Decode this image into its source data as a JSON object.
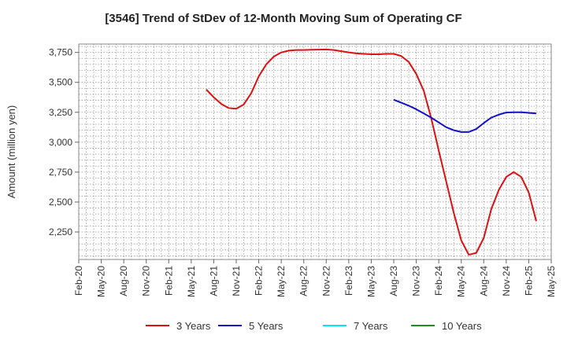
{
  "chart_data": {
    "type": "line",
    "title": "[3546]  Trend of StDev of 12-Month Moving Sum of Operating CF",
    "xlabel": "",
    "ylabel": "Amount (million yen)",
    "ylim": [
      2020,
      3820
    ],
    "yticks": [
      2250,
      2500,
      2750,
      3000,
      3250,
      3500,
      3750
    ],
    "ytick_labels": [
      "2,250",
      "2,500",
      "2,750",
      "3,000",
      "3,250",
      "3,500",
      "3,750"
    ],
    "x_categories": [
      "Feb-20",
      "May-20",
      "Aug-20",
      "Nov-20",
      "Feb-21",
      "May-21",
      "Aug-21",
      "Nov-21",
      "Feb-22",
      "May-22",
      "Aug-22",
      "Nov-22",
      "Feb-23",
      "May-23",
      "Aug-23",
      "Nov-23",
      "Feb-24",
      "May-24",
      "Aug-24",
      "Nov-24",
      "Feb-25",
      "May-25"
    ],
    "grid": true,
    "legend_position": "bottom",
    "series": [
      {
        "name": "3 Years",
        "color": "#dd1111",
        "points": [
          [
            "Jul-21",
            3440
          ],
          [
            "Aug-21",
            3375
          ],
          [
            "Sep-21",
            3320
          ],
          [
            "Oct-21",
            3285
          ],
          [
            "Nov-21",
            3280
          ],
          [
            "Dec-21",
            3315
          ],
          [
            "Jan-22",
            3410
          ],
          [
            "Feb-22",
            3550
          ],
          [
            "Mar-22",
            3650
          ],
          [
            "Apr-22",
            3715
          ],
          [
            "May-22",
            3750
          ],
          [
            "Jun-22",
            3765
          ],
          [
            "Jul-22",
            3770
          ],
          [
            "Aug-22",
            3770
          ],
          [
            "Sep-22",
            3772
          ],
          [
            "Oct-22",
            3773
          ],
          [
            "Nov-22",
            3775
          ],
          [
            "Dec-22",
            3770
          ],
          [
            "Jan-23",
            3760
          ],
          [
            "Feb-23",
            3750
          ],
          [
            "Mar-23",
            3742
          ],
          [
            "Apr-23",
            3738
          ],
          [
            "May-23",
            3735
          ],
          [
            "Jun-23",
            3735
          ],
          [
            "Jul-23",
            3738
          ],
          [
            "Aug-23",
            3738
          ],
          [
            "Sep-23",
            3720
          ],
          [
            "Oct-23",
            3670
          ],
          [
            "Nov-23",
            3570
          ],
          [
            "Dec-23",
            3430
          ],
          [
            "Jan-24",
            3200
          ],
          [
            "Feb-24",
            2930
          ],
          [
            "Mar-24",
            2670
          ],
          [
            "Apr-24",
            2410
          ],
          [
            "May-24",
            2180
          ],
          [
            "Jun-24",
            2060
          ],
          [
            "Jul-24",
            2075
          ],
          [
            "Aug-24",
            2200
          ],
          [
            "Sep-24",
            2440
          ],
          [
            "Oct-24",
            2600
          ],
          [
            "Nov-24",
            2710
          ],
          [
            "Dec-24",
            2750
          ],
          [
            "Jan-25",
            2710
          ],
          [
            "Feb-25",
            2580
          ],
          [
            "Mar-25",
            2340
          ]
        ]
      },
      {
        "name": "5 Years",
        "color": "#1111cc",
        "points": [
          [
            "Aug-23",
            3355
          ],
          [
            "Sep-23",
            3330
          ],
          [
            "Oct-23",
            3305
          ],
          [
            "Nov-23",
            3275
          ],
          [
            "Dec-23",
            3240
          ],
          [
            "Jan-24",
            3205
          ],
          [
            "Feb-24",
            3165
          ],
          [
            "Mar-24",
            3125
          ],
          [
            "Apr-24",
            3100
          ],
          [
            "May-24",
            3085
          ],
          [
            "Jun-24",
            3085
          ],
          [
            "Jul-24",
            3110
          ],
          [
            "Aug-24",
            3160
          ],
          [
            "Sep-24",
            3205
          ],
          [
            "Oct-24",
            3230
          ],
          [
            "Nov-24",
            3248
          ],
          [
            "Dec-24",
            3250
          ],
          [
            "Jan-25",
            3250
          ],
          [
            "Feb-25",
            3245
          ],
          [
            "Mar-25",
            3240
          ]
        ]
      },
      {
        "name": "7 Years",
        "color": "#00e5ee",
        "points": []
      },
      {
        "name": "10 Years",
        "color": "#228b22",
        "points": []
      }
    ]
  }
}
